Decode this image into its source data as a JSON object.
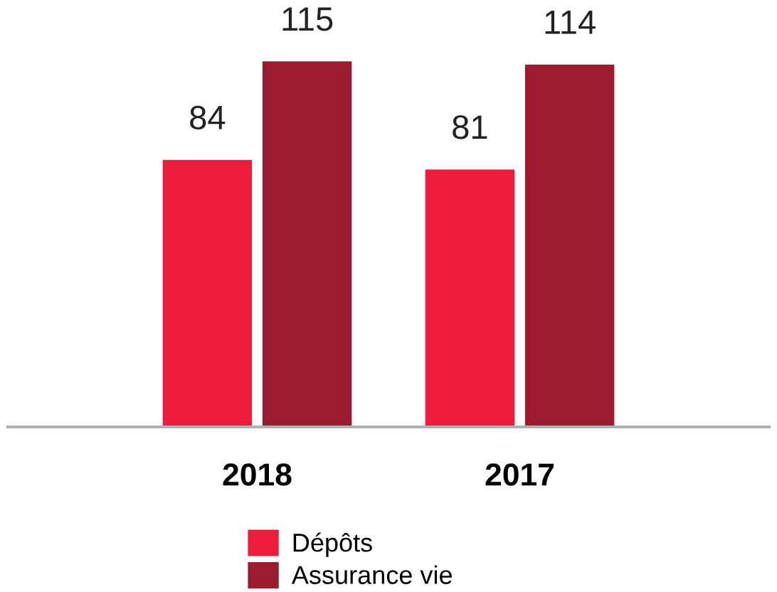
{
  "chart_data": {
    "type": "bar",
    "categories": [
      "2018",
      "2017"
    ],
    "series": [
      {
        "name": "Dépôts",
        "color": "#ee1c3b",
        "values": [
          84,
          81
        ]
      },
      {
        "name": "Assurance vie",
        "color": "#9a1c2e",
        "values": [
          115,
          114
        ]
      }
    ],
    "data_labels": true,
    "legend": "bottom",
    "grid": false
  }
}
